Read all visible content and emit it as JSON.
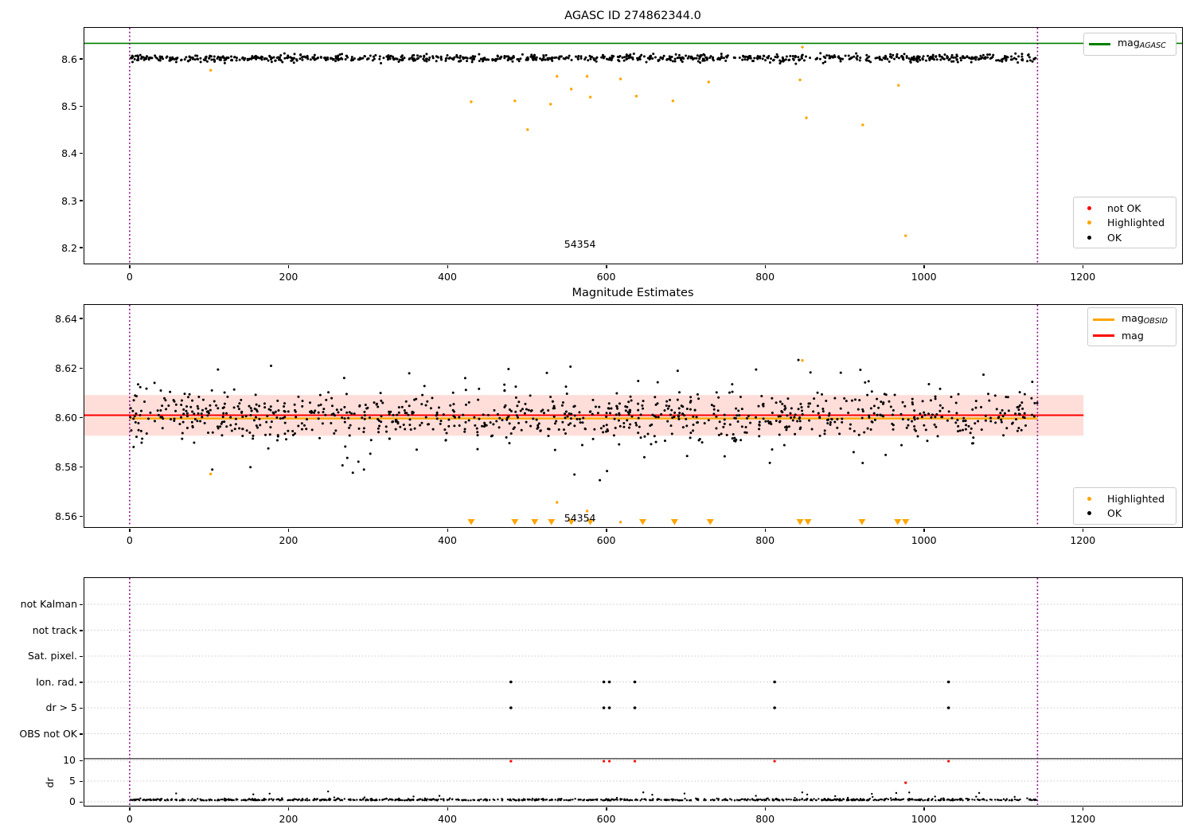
{
  "colors": {
    "ok": "#000000",
    "not_ok": "#ff0000",
    "highlighted": "#ffa500",
    "mag_agasc_line": "#008000",
    "mag_line": "#ff0000",
    "mag_obsid_line": "#ffa500",
    "obs_boundary": "#800080",
    "error_band_fill": "rgba(255,80,60,0.19)",
    "gridline": "#c8c8c8",
    "dr_limit_line": "#000000"
  },
  "xticks": {
    "values": [
      0,
      200,
      400,
      600,
      800,
      1000,
      1200
    ],
    "labels": [
      "0",
      "200",
      "400",
      "600",
      "800",
      "1000",
      "1200"
    ]
  },
  "chart_data": [
    {
      "id": "mag-vs-time",
      "type": "scatter",
      "title": "AGASC ID 274862344.0",
      "xlim": [
        -58,
        1325
      ],
      "ylim": [
        8.166,
        8.6675
      ],
      "yticks": {
        "values": [
          8.2,
          8.3,
          8.4,
          8.5,
          8.6
        ],
        "labels": [
          "8.2",
          "8.3",
          "8.4",
          "8.5",
          "8.6"
        ]
      },
      "mag_agasc": 8.633,
      "obs_boundaries": [
        0,
        1143
      ],
      "annotation": {
        "text": "54354",
        "x": 567,
        "y": 8.207
      },
      "ok_points": {
        "n": 900,
        "x_range": [
          1,
          1142
        ],
        "mean": 8.6015,
        "sd": 0.0035,
        "outlier_frac": 0.05,
        "outlier_amp": 0.009,
        "clamp": [
          8.5825,
          8.6145
        ],
        "seed": 11
      },
      "highlighted_points": [
        [
          102,
          8.576
        ],
        [
          430,
          8.509
        ],
        [
          485,
          8.511
        ],
        [
          501,
          8.45
        ],
        [
          530,
          8.504
        ],
        [
          538,
          8.563
        ],
        [
          556,
          8.536
        ],
        [
          576,
          8.563
        ],
        [
          580,
          8.519
        ],
        [
          618,
          8.5575
        ],
        [
          638,
          8.521
        ],
        [
          684,
          8.511
        ],
        [
          729,
          8.551
        ],
        [
          844,
          8.5555
        ],
        [
          847,
          8.625
        ],
        [
          852,
          8.475
        ],
        [
          923,
          8.46
        ],
        [
          968,
          8.544
        ],
        [
          977,
          8.225
        ]
      ],
      "legend_lines": {
        "items": [
          {
            "type": "line",
            "color": "#008000",
            "label": "mag",
            "sub": "AGASC"
          }
        ]
      },
      "legend_points": {
        "items": [
          {
            "type": "dot",
            "color": "#ff0000",
            "label": "not OK"
          },
          {
            "type": "dot",
            "color": "#ffa500",
            "label": "Highlighted"
          },
          {
            "type": "dot",
            "color": "#000000",
            "label": "OK"
          }
        ]
      }
    },
    {
      "id": "magnitude-estimates",
      "type": "scatter",
      "title": "Magnitude Estimates",
      "xlim": [
        -58,
        1325
      ],
      "ylim": [
        8.5555,
        8.6458
      ],
      "yticks": {
        "values": [
          8.56,
          8.58,
          8.6,
          8.62,
          8.64
        ],
        "labels": [
          "8.56",
          "8.58",
          "8.60",
          "8.62",
          "8.64"
        ]
      },
      "mag": 8.6008,
      "mag_err_band": [
        8.5925,
        8.609
      ],
      "mag_span": [
        -57,
        1201
      ],
      "mag_obsid": {
        "value": 8.5995,
        "span": [
          0,
          1143
        ]
      },
      "obs_boundaries": [
        0,
        1143
      ],
      "annotation": {
        "text": "54354",
        "x": 567,
        "y": 8.5592
      },
      "ok_points": {
        "n": 950,
        "x_range": [
          0,
          1143
        ],
        "mean": 8.6005,
        "sd": 0.005,
        "outlier_frac": 0.06,
        "outlier_amp": 0.009,
        "clamp": [
          8.5748,
          8.6232
        ],
        "seed": 7
      },
      "ok_extra": [
        [
          268,
          8.5805
        ],
        [
          274,
          8.5835
        ],
        [
          281,
          8.5775
        ],
        [
          288,
          8.582
        ],
        [
          295,
          8.5788
        ],
        [
          303,
          8.5852
        ],
        [
          560,
          8.5768
        ],
        [
          592,
          8.5745
        ],
        [
          601,
          8.5782
        ],
        [
          648,
          8.5838
        ],
        [
          806,
          8.5815
        ],
        [
          104,
          8.5788
        ],
        [
          178,
          8.6208
        ],
        [
          352,
          8.6178
        ],
        [
          477,
          8.6195
        ],
        [
          555,
          8.6205
        ],
        [
          690,
          8.6188
        ],
        [
          842,
          8.6232
        ],
        [
          920,
          8.6192
        ],
        [
          1075,
          8.6172
        ]
      ],
      "highlighted_points": [
        [
          102,
          8.577
        ],
        [
          538,
          8.5655
        ],
        [
          576,
          8.562
        ],
        [
          618,
          8.5575
        ],
        [
          847,
          8.623
        ]
      ],
      "offscale_low_x": [
        430,
        485,
        510,
        531,
        556,
        580,
        646,
        686,
        731,
        844,
        854,
        922,
        967,
        977
      ],
      "legend_lines": {
        "items": [
          {
            "type": "line",
            "color": "#ffa500",
            "label": "mag",
            "sub": "OBSID"
          },
          {
            "type": "line",
            "color": "#ff0000",
            "label": "mag",
            "sub": ""
          }
        ]
      },
      "legend_points": {
        "items": [
          {
            "type": "dot",
            "color": "#ffa500",
            "label": "Highlighted"
          },
          {
            "type": "dot",
            "color": "#000000",
            "label": "OK"
          }
        ]
      }
    },
    {
      "id": "flags-and-dr",
      "type": "scatter",
      "flag_rows": [
        {
          "label": "not Kalman",
          "x": []
        },
        {
          "label": "not track",
          "x": []
        },
        {
          "label": "Sat. pixel.",
          "x": []
        },
        {
          "label": "Ion. rad.",
          "x": [
            480,
            597,
            604,
            636,
            812,
            1031
          ]
        },
        {
          "label": "dr > 5",
          "x": [
            480,
            597,
            604,
            636,
            812,
            1031
          ]
        },
        {
          "label": "OBS not OK",
          "x": []
        }
      ],
      "dr_axis": {
        "label": "dr",
        "ticks": {
          "values": [
            0,
            5,
            10
          ],
          "labels": [
            "0",
            "5",
            "10"
          ]
        }
      },
      "dr_limit": 10.4,
      "obs_boundaries": [
        0,
        1143
      ],
      "dr_ok_points": {
        "n": 850,
        "x_range": [
          0,
          1143
        ],
        "base": 0.32,
        "spread": 0.2,
        "outlier_frac": 0.03,
        "outlier_max": 1.9,
        "clamp": [
          0.05,
          2.6
        ],
        "seed": 99
      },
      "dr_not_ok_points": [
        [
          480,
          9.8
        ],
        [
          597,
          9.8
        ],
        [
          604,
          9.8
        ],
        [
          636,
          9.8
        ],
        [
          812,
          9.8
        ],
        [
          1031,
          9.8
        ],
        [
          977,
          4.6
        ]
      ]
    }
  ]
}
